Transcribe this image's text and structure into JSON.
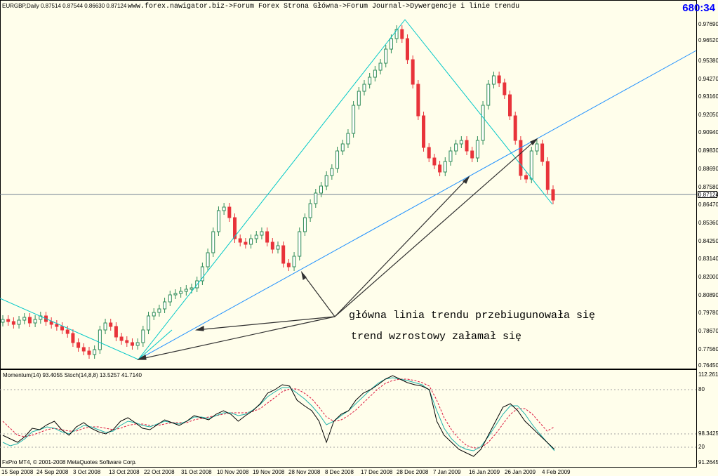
{
  "symbol_info": "EURGBP,Daily  0.87514 0.87544 0.86630 0.87124",
  "header_title": "www.forex.nawigator.biz->Forum Forex Strona Główna->Forum Journal->Dywergencje i linie trendu",
  "bar_timer": "680:34",
  "indicator_info": "Momentum(14) 93.4055  Stoch(14,8,8) 13.5257 41.7140",
  "copyright": "FxPro MT4, © 2001-2008 MetaQuotes Software Corp.",
  "current_price": "0.87124",
  "annotations": {
    "line1": "główna linia trendu przebiugunowała się",
    "line2": "trend wzrostowy załamał się"
  },
  "price_axis": [
    "0.97690",
    "0.96520",
    "0.95380",
    "0.94270",
    "0.93160",
    "0.92050",
    "0.90940",
    "0.89830",
    "0.88690",
    "0.87580",
    "0.86470",
    "0.85360",
    "0.84250",
    "0.83140",
    "0.82000",
    "0.80890",
    "0.79780",
    "0.78670",
    "0.77560",
    "0.76450"
  ],
  "indicator_axis": [
    "112.2610",
    "80",
    "98.3425",
    "20",
    "91.2645"
  ],
  "date_axis": [
    "15 Sep 2008",
    "24 Sep 2008",
    "3 Oct 2008",
    "13 Oct 2008",
    "22 Oct 2008",
    "31 Oct 2008",
    "10 Nov 2008",
    "19 Nov 2008",
    "28 Nov 2008",
    "8 Dec 2008",
    "17 Dec 2008",
    "28 Dec 2008",
    "7 Jan 2009",
    "16 Jan 2009",
    "26 Jan 2009",
    "4 Feb 2009"
  ],
  "colors": {
    "background": "#fffeeb",
    "bull_candle": "#2e8b57",
    "bear_candle": "#e8333a",
    "trendline": "#1e90ff",
    "channel": "#00c8c8",
    "arrow": "#303030",
    "momentum": "#000000",
    "stoch_main": "#20b2aa",
    "stoch_signal": "#dc143c"
  }
}
